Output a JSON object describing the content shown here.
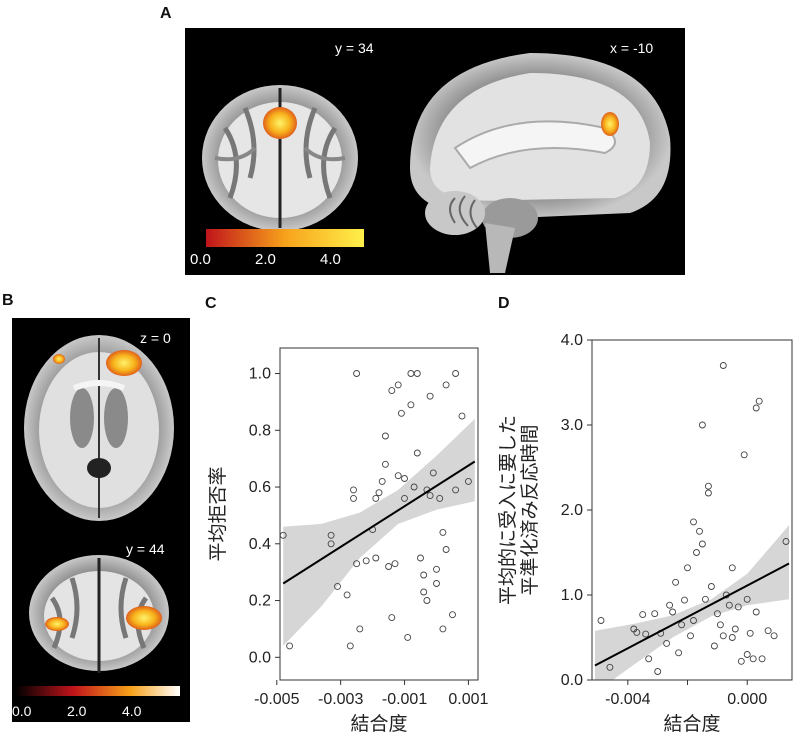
{
  "panels": {
    "A": {
      "letter": "A",
      "coronal_label": "y = 34",
      "sagittal_label": "x = -10",
      "colorbar_ticks": [
        "0.0",
        "2.0",
        "4.0"
      ],
      "colorbar_colors": [
        "#c0141b",
        "#f7a21b",
        "#fff04a"
      ]
    },
    "B": {
      "letter": "B",
      "axial_label": "z = 0",
      "coronal_label": "y = 44",
      "colorbar_ticks": [
        "0.0",
        "2.0",
        "4.0"
      ],
      "colorbar_colors": [
        "#000000",
        "#c0141b",
        "#f7a21b",
        "#ffffff"
      ]
    },
    "C": {
      "letter": "C"
    },
    "D": {
      "letter": "D"
    }
  },
  "chart_data": [
    {
      "panel": "C",
      "type": "scatter",
      "xlabel": "結合度",
      "ylabel": "平均拒否率",
      "xlim": [
        -0.0049,
        0.0013
      ],
      "ylim": [
        -0.08,
        1.09
      ],
      "xticks": [
        -0.005,
        -0.003,
        -0.001,
        0.001
      ],
      "xtick_labels": [
        "-0.005",
        "-0.003",
        "-0.001",
        "0.001"
      ],
      "yticks": [
        0.0,
        0.2,
        0.4,
        0.6,
        0.8,
        1.0
      ],
      "ytick_labels": [
        "0.0",
        "0.2",
        "0.4",
        "0.6",
        "0.8",
        "1.0"
      ],
      "grid": false,
      "regression_line": {
        "x": [
          -0.0048,
          0.0012
        ],
        "y": [
          0.26,
          0.69
        ]
      },
      "confidence_band": {
        "x": [
          -0.0048,
          -0.0036,
          -0.0024,
          -0.0012,
          0.0,
          0.0012
        ],
        "lower": [
          0.04,
          0.18,
          0.35,
          0.47,
          0.52,
          0.55
        ],
        "upper": [
          0.46,
          0.47,
          0.51,
          0.59,
          0.71,
          0.84
        ]
      },
      "points": [
        [
          -0.0048,
          0.43
        ],
        [
          -0.0046,
          0.04
        ],
        [
          -0.0033,
          0.43
        ],
        [
          -0.0033,
          0.4
        ],
        [
          -0.0031,
          0.25
        ],
        [
          -0.0028,
          0.22
        ],
        [
          -0.0027,
          0.04
        ],
        [
          -0.0026,
          0.59
        ],
        [
          -0.0026,
          0.56
        ],
        [
          -0.0025,
          0.33
        ],
        [
          -0.0025,
          1.0
        ],
        [
          -0.0024,
          0.1
        ],
        [
          -0.0022,
          0.34
        ],
        [
          -0.002,
          0.45
        ],
        [
          -0.0019,
          0.56
        ],
        [
          -0.0019,
          0.35
        ],
        [
          -0.0018,
          0.58
        ],
        [
          -0.0017,
          0.62
        ],
        [
          -0.0016,
          0.78
        ],
        [
          -0.0016,
          0.68
        ],
        [
          -0.0015,
          0.32
        ],
        [
          -0.0014,
          0.14
        ],
        [
          -0.0014,
          0.94
        ],
        [
          -0.0013,
          0.33
        ],
        [
          -0.0012,
          0.96
        ],
        [
          -0.0012,
          0.64
        ],
        [
          -0.0011,
          0.86
        ],
        [
          -0.001,
          0.56
        ],
        [
          -0.001,
          0.63
        ],
        [
          -0.0009,
          0.07
        ],
        [
          -0.0008,
          1.0
        ],
        [
          -0.0008,
          0.89
        ],
        [
          -0.0007,
          0.6
        ],
        [
          -0.0006,
          1.0
        ],
        [
          -0.0006,
          0.72
        ],
        [
          -0.0005,
          0.35
        ],
        [
          -0.0004,
          0.29
        ],
        [
          -0.0004,
          0.23
        ],
        [
          -0.0003,
          0.2
        ],
        [
          -0.0003,
          0.59
        ],
        [
          -0.0002,
          0.57
        ],
        [
          -0.0002,
          0.92
        ],
        [
          -0.0001,
          0.65
        ],
        [
          0.0,
          0.31
        ],
        [
          0.0,
          0.26
        ],
        [
          0.0001,
          0.56
        ],
        [
          0.0002,
          0.1
        ],
        [
          0.0002,
          0.44
        ],
        [
          0.0003,
          0.38
        ],
        [
          0.0003,
          0.96
        ],
        [
          0.0005,
          0.15
        ],
        [
          0.0006,
          0.59
        ],
        [
          0.0006,
          1.0
        ],
        [
          0.0008,
          0.85
        ],
        [
          0.001,
          0.62
        ]
      ]
    },
    {
      "panel": "D",
      "type": "scatter",
      "xlabel": "結合度",
      "ylabel": "平均的に受入に要した平準化済み反応時間",
      "ylabel_lines": [
        "平均的に受入に要した",
        "平準化済み反応時間"
      ],
      "xlim": [
        -0.0052,
        0.0015
      ],
      "ylim": [
        0.0,
        4.0
      ],
      "xticks": [
        -0.004,
        -0.002,
        0.0
      ],
      "xtick_labels": [
        "-0.004",
        "",
        "0.000"
      ],
      "yticks": [
        0.0,
        1.0,
        2.0,
        3.0,
        4.0
      ],
      "ytick_labels": [
        "0.0",
        "1.0",
        "2.0",
        "3.0",
        "4.0"
      ],
      "grid": false,
      "regression_line": {
        "x": [
          -0.0051,
          0.0014
        ],
        "y": [
          0.17,
          1.37
        ]
      },
      "confidence_band": {
        "x": [
          -0.0051,
          -0.0038,
          -0.0025,
          -0.0012,
          0.0,
          0.0014
        ],
        "lower": [
          -0.15,
          0.18,
          0.5,
          0.75,
          0.88,
          0.95
        ],
        "upper": [
          0.58,
          0.66,
          0.76,
          0.95,
          1.25,
          1.82
        ]
      },
      "points": [
        [
          -0.0049,
          0.7
        ],
        [
          -0.0046,
          0.15
        ],
        [
          -0.0038,
          0.6
        ],
        [
          -0.0037,
          0.56
        ],
        [
          -0.0035,
          0.77
        ],
        [
          -0.0034,
          0.54
        ],
        [
          -0.0033,
          0.25
        ],
        [
          -0.0031,
          0.78
        ],
        [
          -0.003,
          0.1
        ],
        [
          -0.0029,
          0.55
        ],
        [
          -0.0027,
          0.43
        ],
        [
          -0.0026,
          0.88
        ],
        [
          -0.0025,
          0.8
        ],
        [
          -0.0024,
          1.15
        ],
        [
          -0.0023,
          0.32
        ],
        [
          -0.0022,
          0.65
        ],
        [
          -0.0021,
          0.94
        ],
        [
          -0.002,
          1.32
        ],
        [
          -0.0019,
          0.52
        ],
        [
          -0.0018,
          1.86
        ],
        [
          -0.0018,
          0.7
        ],
        [
          -0.0017,
          1.5
        ],
        [
          -0.0016,
          1.75
        ],
        [
          -0.0015,
          3.0
        ],
        [
          -0.0015,
          1.6
        ],
        [
          -0.0014,
          0.95
        ],
        [
          -0.0013,
          2.28
        ],
        [
          -0.0013,
          2.2
        ],
        [
          -0.0012,
          1.1
        ],
        [
          -0.0011,
          0.4
        ],
        [
          -0.001,
          0.78
        ],
        [
          -0.0009,
          0.65
        ],
        [
          -0.0008,
          3.7
        ],
        [
          -0.0008,
          0.52
        ],
        [
          -0.0007,
          1.0
        ],
        [
          -0.0006,
          0.88
        ],
        [
          -0.0005,
          0.5
        ],
        [
          -0.0005,
          1.32
        ],
        [
          -0.0004,
          0.6
        ],
        [
          -0.0003,
          0.86
        ],
        [
          -0.0002,
          0.22
        ],
        [
          -0.0001,
          2.65
        ],
        [
          0.0,
          0.3
        ],
        [
          0.0,
          0.95
        ],
        [
          0.0001,
          0.55
        ],
        [
          0.0002,
          0.25
        ],
        [
          0.0003,
          0.8
        ],
        [
          0.0003,
          3.2
        ],
        [
          0.0004,
          3.28
        ],
        [
          0.0005,
          0.25
        ],
        [
          0.0007,
          0.58
        ],
        [
          0.0009,
          0.52
        ],
        [
          0.0013,
          1.63
        ]
      ]
    }
  ]
}
